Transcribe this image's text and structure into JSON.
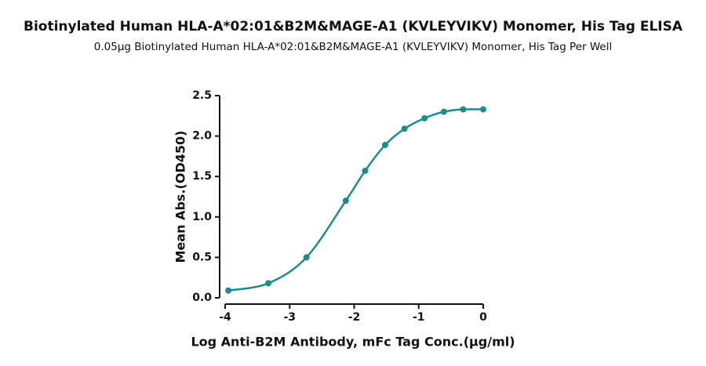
{
  "chart_data": {
    "type": "line",
    "title": "Biotinylated Human HLA-A*02:01&B2M&MAGE-A1 (KVLEYVIKV) Monomer, His Tag ELISA",
    "subtitle": "0.05µg Biotinylated Human HLA-A*02:01&B2M&MAGE-A1 (KVLEYVIKV) Monomer, His Tag Per Well",
    "x_label": "Log Anti-B2M Antibody, mFc Tag Conc.(µg/ml)",
    "y_label": "Mean Abs.(OD450)",
    "x": [
      -3.95,
      -3.33,
      -2.74,
      -2.13,
      -1.83,
      -1.52,
      -1.22,
      -0.91,
      -0.61,
      -0.31,
      0
    ],
    "series": [
      {
        "color": "#1e8a8c",
        "values": [
          0.09,
          0.18,
          0.5,
          1.2,
          1.57,
          1.89,
          2.09,
          2.22,
          2.3,
          2.33,
          2.33
        ]
      }
    ],
    "xlim": [
      -4,
      0
    ],
    "ylim": [
      0,
      2.5
    ],
    "xticks": [
      -4,
      -3,
      -2,
      -1,
      0
    ],
    "yticks": [
      {
        "value": 0,
        "label": "0.0"
      },
      0.5,
      {
        "value": 1,
        "label": "1.0"
      },
      1.5,
      {
        "value": 2,
        "label": "2.0"
      },
      2.5
    ]
  }
}
